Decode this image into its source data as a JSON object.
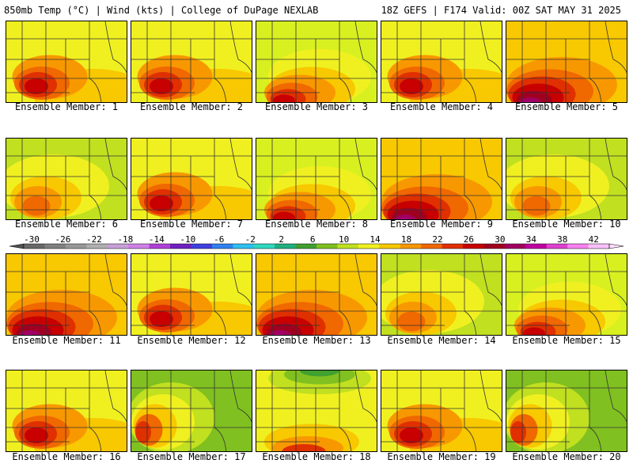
{
  "header": {
    "left": "850mb Temp (°C) | Wind (kts) | College of DuPage NEXLAB",
    "right": "18Z GEFS | F174 Valid: 00Z SAT MAY 31 2025"
  },
  "colorbar": {
    "tick_labels": [
      "-30",
      "-26",
      "-22",
      "-18",
      "-14",
      "-10",
      "-6",
      "-2",
      "2",
      "6",
      "10",
      "14",
      "18",
      "22",
      "26",
      "30",
      "34",
      "38",
      "42"
    ],
    "colors": [
      "#686868",
      "#808080",
      "#989898",
      "#b0b0b0",
      "#c8a0d8",
      "#d080e8",
      "#b040d8",
      "#7020c0",
      "#4040e0",
      "#3080f0",
      "#30c0f0",
      "#30d8c0",
      "#20b080",
      "#40a030",
      "#80c020",
      "#c0e020",
      "#f0f020",
      "#f8c800",
      "#f89800",
      "#f06800",
      "#e03000",
      "#c80000",
      "#a00020",
      "#a00060",
      "#c000a0",
      "#e040d0",
      "#f880f0",
      "#f8c0f8"
    ]
  },
  "panels": [
    {
      "caption": "Ensemble Member: 1",
      "palette": "warm-west"
    },
    {
      "caption": "Ensemble Member: 2",
      "palette": "warm-west"
    },
    {
      "caption": "Ensemble Member: 3",
      "palette": "warm-south"
    },
    {
      "caption": "Ensemble Member: 4",
      "palette": "warm-west"
    },
    {
      "caption": "Ensemble Member: 5",
      "palette": "hot-south"
    },
    {
      "caption": "Ensemble Member: 6",
      "palette": "mild"
    },
    {
      "caption": "Ensemble Member: 7",
      "palette": "warm-west"
    },
    {
      "caption": "Ensemble Member: 8",
      "palette": "warm-south"
    },
    {
      "caption": "Ensemble Member: 9",
      "palette": "hot-south"
    },
    {
      "caption": "Ensemble Member: 10",
      "palette": "mild"
    },
    {
      "caption": "Ensemble Member: 11",
      "palette": "hot-south"
    },
    {
      "caption": "Ensemble Member: 12",
      "palette": "warm-west"
    },
    {
      "caption": "Ensemble Member: 13",
      "palette": "hot-south"
    },
    {
      "caption": "Ensemble Member: 14",
      "palette": "mild"
    },
    {
      "caption": "Ensemble Member: 15",
      "palette": "warm-south"
    },
    {
      "caption": "Ensemble Member: 16",
      "palette": "warm-west"
    },
    {
      "caption": "Ensemble Member: 17",
      "palette": "cool-east"
    },
    {
      "caption": "Ensemble Member: 18",
      "palette": "cool-north"
    },
    {
      "caption": "Ensemble Member: 19",
      "palette": "warm-west"
    },
    {
      "caption": "Ensemble Member: 20",
      "palette": "cool-east"
    }
  ]
}
